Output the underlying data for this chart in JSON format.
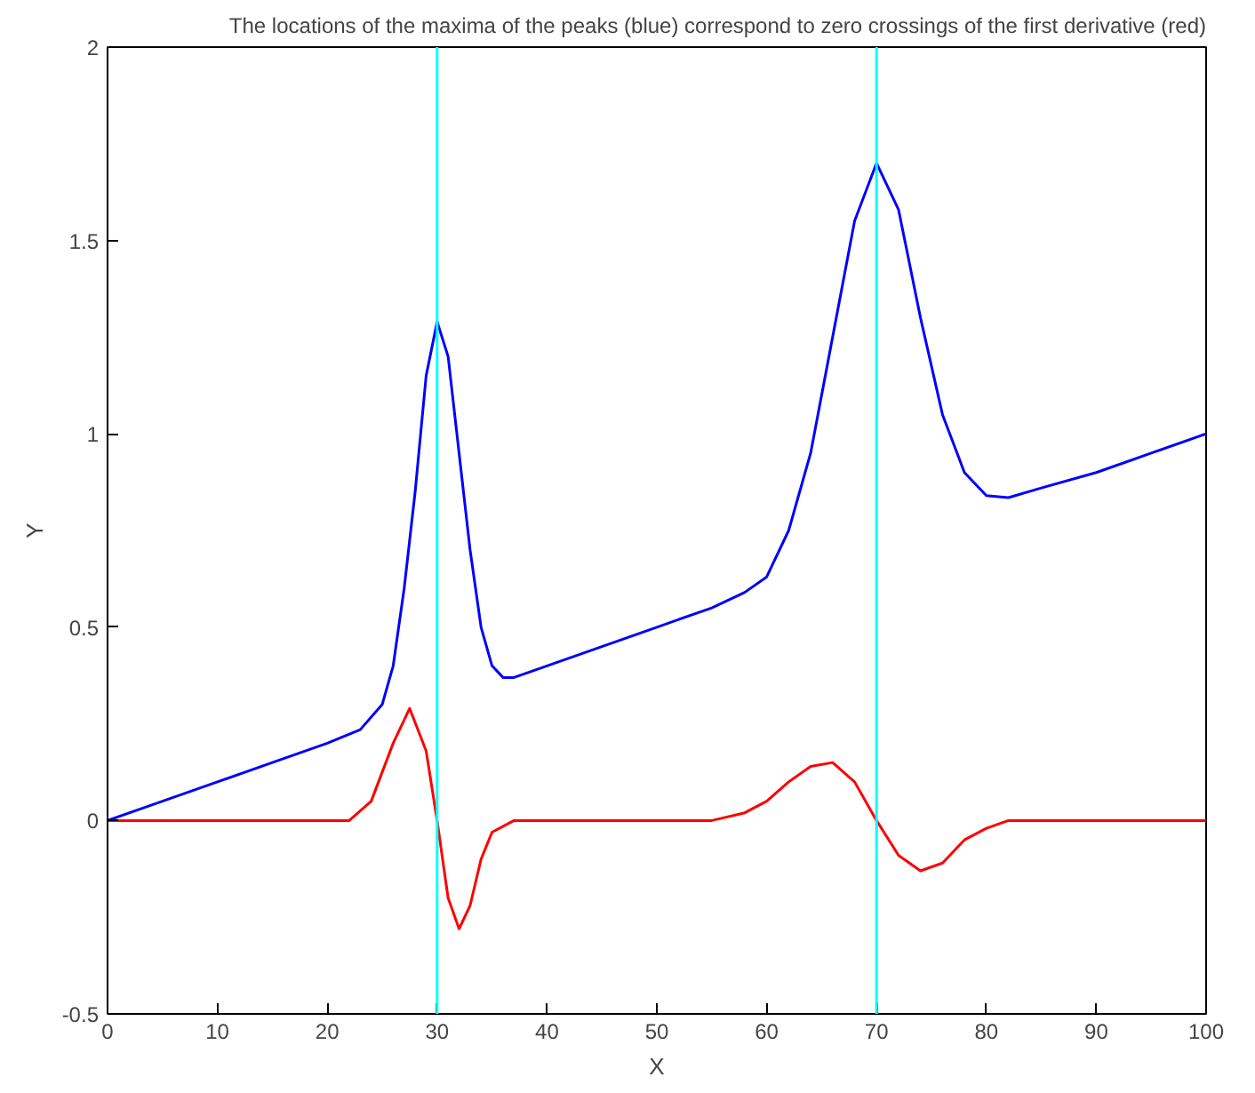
{
  "chart_data": {
    "type": "line",
    "title": "The locations of the maxima of the peaks (blue) correspond to zero crossings of the first derivative (red)",
    "xlabel": "X",
    "ylabel": "Y",
    "xlim": [
      0,
      100
    ],
    "ylim": [
      -0.5,
      2
    ],
    "xticks": [
      0,
      10,
      20,
      30,
      40,
      50,
      60,
      70,
      80,
      90,
      100
    ],
    "yticks": [
      -0.5,
      0,
      0.5,
      1,
      1.5,
      2
    ],
    "ref_lines": [
      {
        "axis": "x",
        "value": 30,
        "color": "#00ffff"
      },
      {
        "axis": "x",
        "value": 70,
        "color": "#00ffff"
      }
    ],
    "series": [
      {
        "color": "#0000ff",
        "x": [
          0,
          5,
          10,
          15,
          20,
          23,
          25,
          26,
          27,
          28,
          29,
          30,
          31,
          32,
          33,
          34,
          35,
          36,
          37,
          40,
          45,
          50,
          55,
          58,
          60,
          62,
          64,
          66,
          68,
          70,
          72,
          74,
          76,
          78,
          80,
          82,
          85,
          90,
          95,
          100
        ],
        "values": [
          0,
          0.05,
          0.1,
          0.15,
          0.2,
          0.235,
          0.3,
          0.4,
          0.6,
          0.85,
          1.15,
          1.29,
          1.2,
          0.95,
          0.7,
          0.5,
          0.4,
          0.37,
          0.37,
          0.4,
          0.45,
          0.5,
          0.55,
          0.59,
          0.63,
          0.75,
          0.95,
          1.25,
          1.55,
          1.7,
          1.58,
          1.3,
          1.05,
          0.9,
          0.84,
          0.835,
          0.86,
          0.9,
          0.95,
          1.0
        ]
      },
      {
        "color": "#ff0000",
        "x": [
          0,
          10,
          22,
          24,
          26,
          27.5,
          29,
          30,
          31,
          32,
          33,
          34,
          35,
          37,
          45,
          55,
          58,
          60,
          62,
          64,
          66,
          68,
          70,
          72,
          74,
          76,
          78,
          80,
          82,
          90,
          100
        ],
        "values": [
          0,
          0,
          0,
          0.05,
          0.2,
          0.29,
          0.18,
          0.0,
          -0.2,
          -0.28,
          -0.22,
          -0.1,
          -0.03,
          0,
          0,
          0,
          0.02,
          0.05,
          0.1,
          0.14,
          0.15,
          0.1,
          0,
          -0.09,
          -0.13,
          -0.11,
          -0.05,
          -0.02,
          0,
          0,
          0
        ]
      }
    ]
  }
}
